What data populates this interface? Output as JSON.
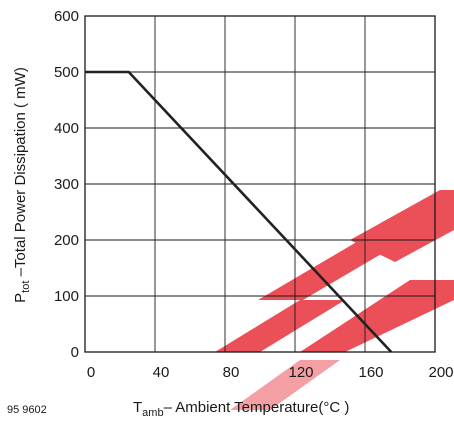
{
  "chart_data": {
    "type": "line",
    "title": "",
    "figure_id": "95 9602",
    "ylabel": {
      "symbol_main": "P",
      "symbol_sub": "tot",
      "text": " –Total Power Dissipation ( mW)"
    },
    "xlabel": {
      "symbol_main": "T",
      "symbol_sub": "amb",
      "text": "– Ambient Temperature(°C )"
    },
    "xlim": [
      0,
      200
    ],
    "ylim": [
      0,
      600
    ],
    "x_ticks": [
      0,
      40,
      80,
      120,
      160,
      200
    ],
    "y_ticks": [
      0,
      100,
      200,
      300,
      400,
      500,
      600
    ],
    "grid": true,
    "series": [
      {
        "x": [
          0,
          25,
          175
        ],
        "y": [
          500,
          500,
          0
        ]
      }
    ],
    "colors": {
      "line": "#222222",
      "axis": "#1a1a1a",
      "watermark": "#e8313a"
    }
  }
}
